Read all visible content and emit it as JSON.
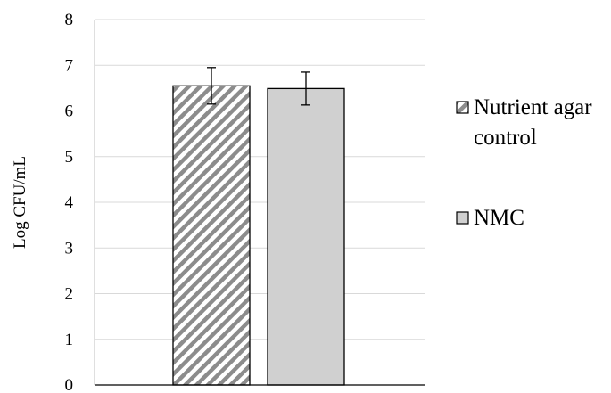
{
  "chart_data": {
    "type": "bar",
    "categories": [
      "Nutrient agar control",
      "NMC"
    ],
    "series": [
      {
        "name": "Nutrient agar control",
        "value": 6.55,
        "error": 0.4,
        "fill": "hatched",
        "color": "#8c8c8c"
      },
      {
        "name": "NMC",
        "value": 6.49,
        "error": 0.36,
        "fill": "solid",
        "color": "#d0d0d0"
      }
    ],
    "ylabel": "Log CFU/mL",
    "ylim": [
      0,
      8
    ],
    "yticks": [
      "0",
      "1",
      "2",
      "3",
      "4",
      "5",
      "6",
      "7",
      "8"
    ],
    "grid": true,
    "legend_position": "right",
    "legend": [
      {
        "lines": [
          "Nutrient agar",
          "control"
        ]
      },
      {
        "lines": [
          "NMC"
        ]
      }
    ]
  }
}
